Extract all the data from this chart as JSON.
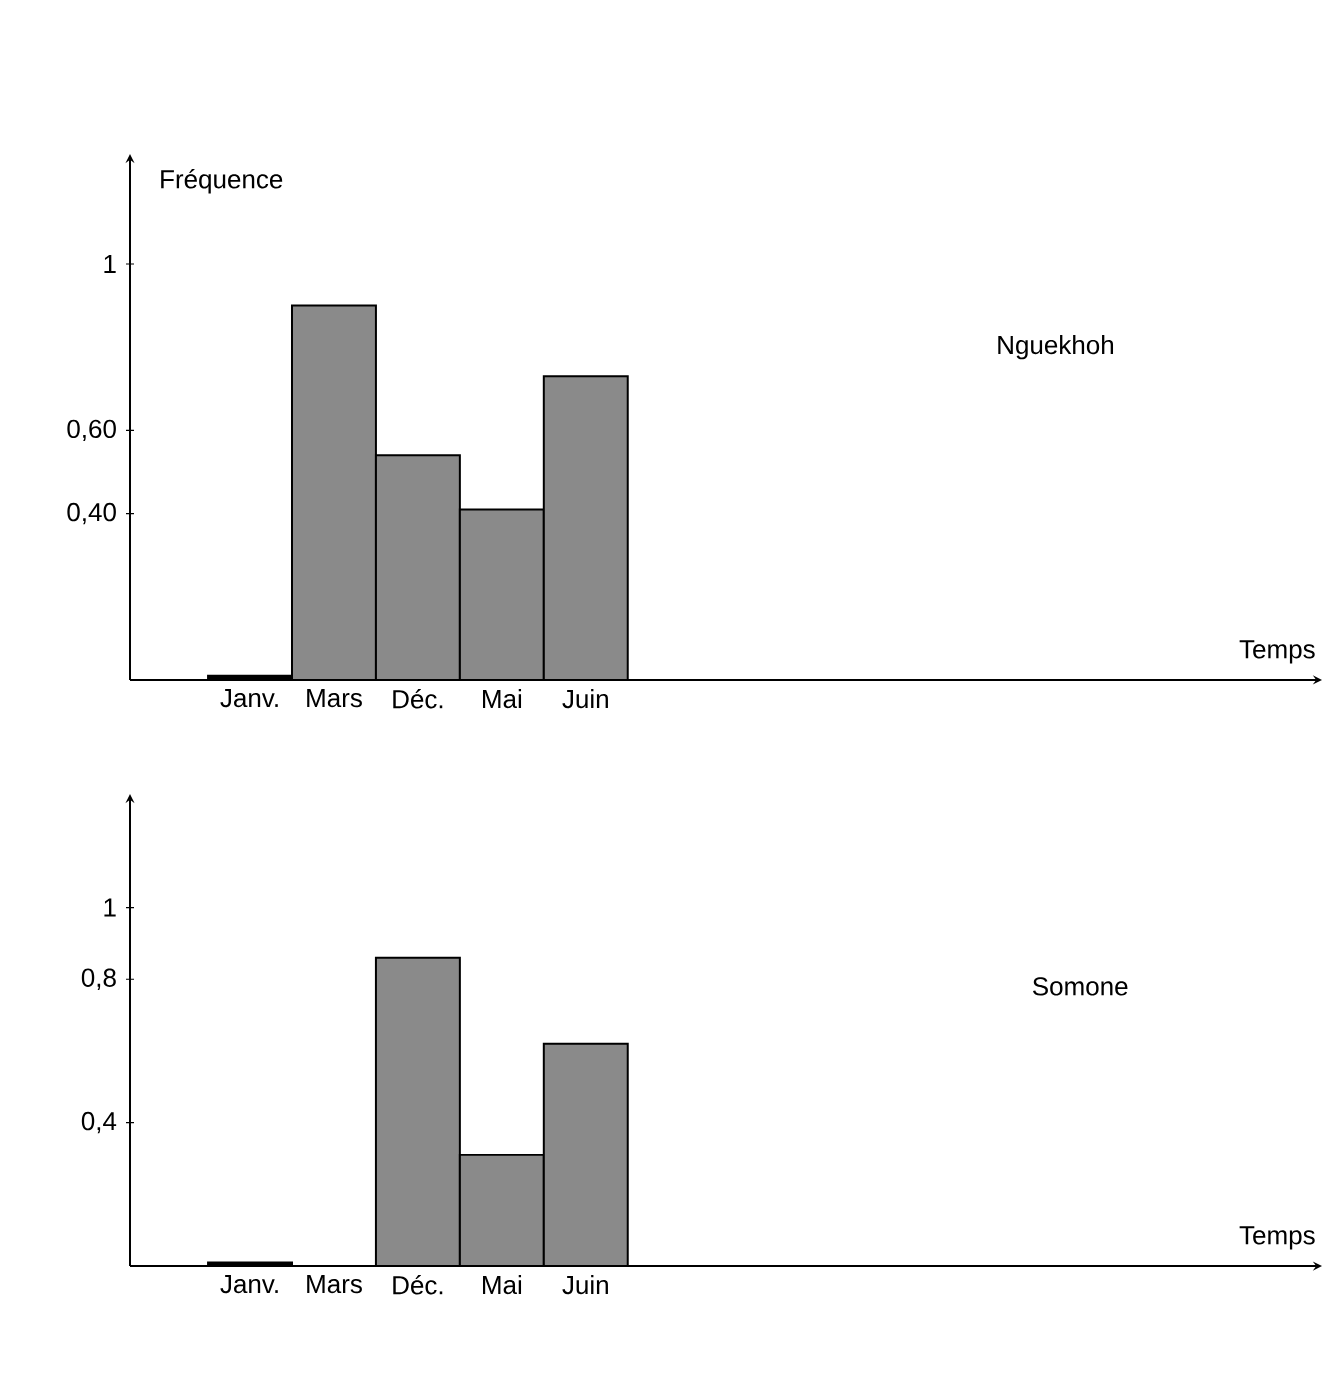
{
  "chart_data": [
    {
      "type": "bar",
      "annotations": [
        "Nguekhoh",
        "Temps"
      ],
      "ylabel": "Fréquence",
      "categories": [
        "Janv.",
        "Mars",
        "Déc.",
        "Mai",
        "Juin"
      ],
      "values": [
        0.01,
        0.9,
        0.54,
        0.41,
        0.73
      ],
      "colors": [
        "#000000",
        "#8a8a8a",
        "#8a8a8a",
        "#8a8a8a",
        "#8a8a8a"
      ],
      "ylim": [
        0,
        1.25
      ],
      "yticks": [
        {
          "value": 0.4,
          "label": "0,40"
        },
        {
          "value": 0.6,
          "label": "0,60"
        },
        1
      ]
    },
    {
      "type": "bar",
      "annotations": [
        "Somone",
        "Temps"
      ],
      "categories": [
        "Janv.",
        "Mars",
        "Déc.",
        "Mai",
        "Juin"
      ],
      "values": [
        0.01,
        null,
        0.86,
        0.31,
        0.62
      ],
      "colors": [
        "#000000",
        "#8a8a8a",
        "#8a8a8a",
        "#8a8a8a",
        "#8a8a8a"
      ],
      "ylim": [
        0,
        1.3
      ],
      "yticks": [
        {
          "value": 0.4,
          "label": "0,4"
        },
        {
          "value": 0.8,
          "label": "0,8"
        },
        1
      ]
    }
  ]
}
